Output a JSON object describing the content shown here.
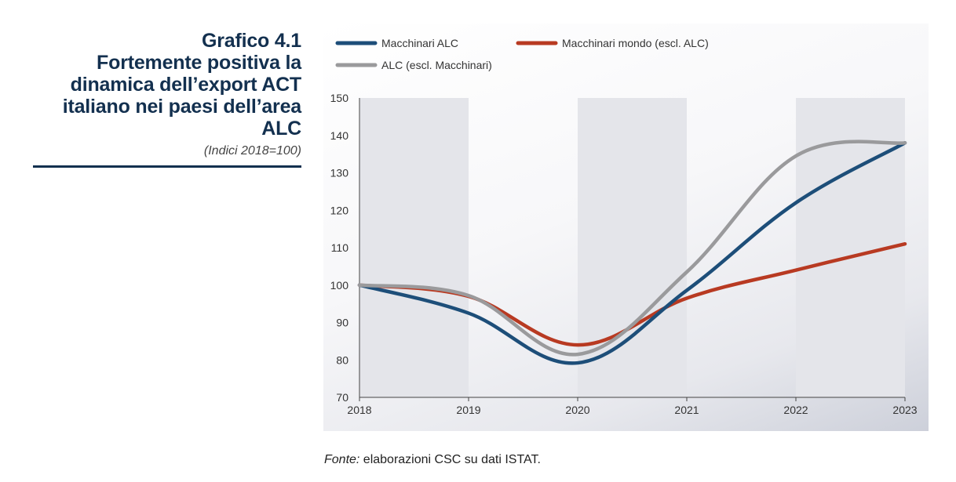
{
  "title": {
    "lines": [
      "Grafico 4.1",
      "Fortemente positiva la",
      "dinamica dell’export ACT",
      "italiano nei paesi dell’area ALC"
    ],
    "subtitle": "(Indici 2018=100)"
  },
  "source": {
    "label": "Fonte:",
    "text": " elaborazioni CSC su dati ISTAT."
  },
  "chart_data": {
    "type": "line",
    "x": [
      2018,
      2019,
      2020,
      2021,
      2022,
      2023
    ],
    "ylim": [
      70,
      150
    ],
    "yticks": [
      70,
      80,
      90,
      100,
      110,
      120,
      130,
      140,
      150
    ],
    "grid": false,
    "shaded_bands": [
      [
        2018,
        2019
      ],
      [
        2020,
        2021
      ],
      [
        2022,
        2023
      ]
    ],
    "legend_position": "top-left",
    "series": [
      {
        "name": "Macchinari ALC",
        "color": "#1d4e79",
        "values": [
          100,
          92.5,
          79.2,
          98.6,
          122,
          138
        ]
      },
      {
        "name": "Macchinari mondo (escl. ALC)",
        "color": "#b83a22",
        "values": [
          100,
          97,
          84,
          96.5,
          104,
          111
        ]
      },
      {
        "name": "ALC (escl. Macchinari)",
        "color": "#9a9a9c",
        "values": [
          100,
          97.2,
          81.5,
          103.5,
          134.5,
          138
        ]
      }
    ]
  }
}
